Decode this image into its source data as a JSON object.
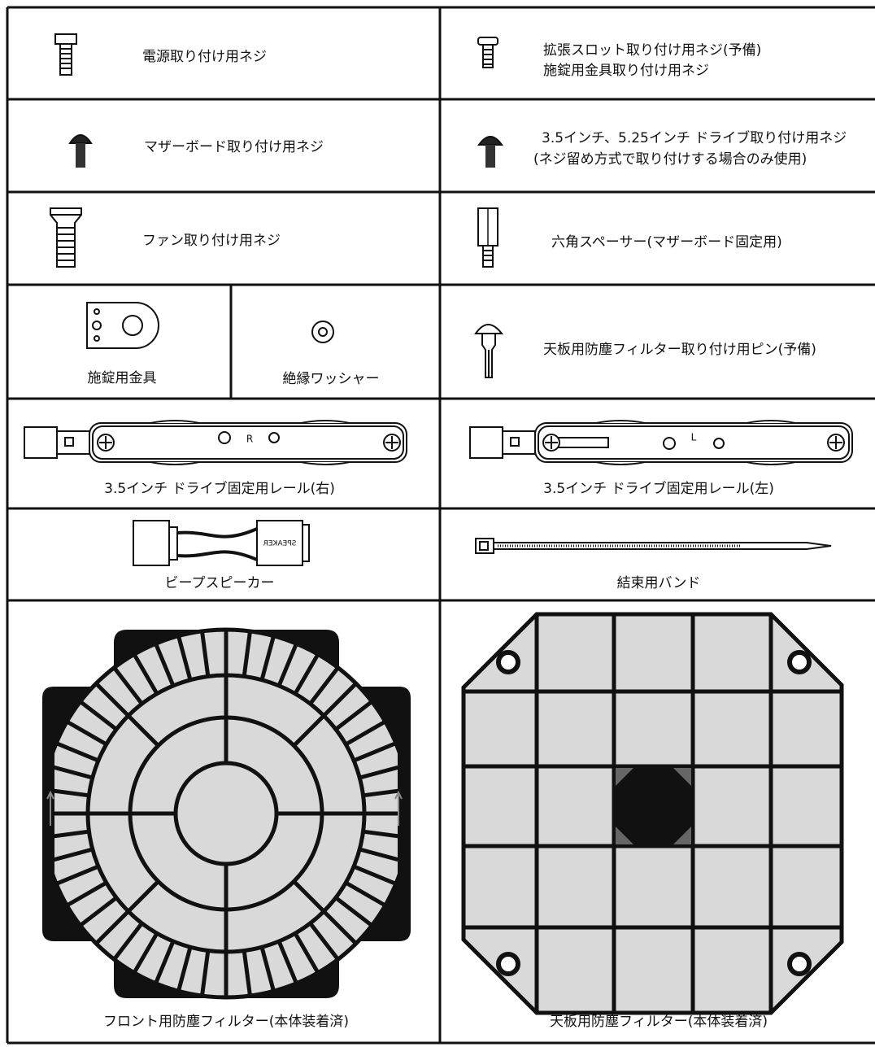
{
  "parts": [
    {
      "label": "電源取り付け用ネジ"
    },
    {
      "lines": [
        "拡張スロット取り付け用ネジ(予備)",
        "施錠用金具取り付け用ネジ"
      ]
    },
    {
      "label": "マザーボード取り付け用ネジ"
    },
    {
      "lines": [
        "3.5インチ、5.25インチ ドライブ取り付け用ネジ",
        "(ネジ留め方式で取り付けする場合のみ使用)"
      ]
    },
    {
      "label": "ファン取り付け用ネジ"
    },
    {
      "label": "六角スペーサー(マザーボード固定用)"
    },
    {
      "label": "施錠用金具"
    },
    {
      "label": "絶縁ワッシャー"
    },
    {
      "label": "天板用防塵フィルター取り付け用ピン(予備)"
    },
    {
      "label": "3.5インチ ドライブ固定用レール(右)",
      "mark": "R"
    },
    {
      "label": "3.5インチ ドライブ固定用レール(左)",
      "mark": "L"
    },
    {
      "label": "ビープスピーカー",
      "mark": "SPEAKER"
    },
    {
      "label": "結束用バンド"
    },
    {
      "label": "フロント用防塵フィルター(本体装着済)"
    },
    {
      "label": "天板用防塵フィルター(本体装着済)"
    }
  ]
}
